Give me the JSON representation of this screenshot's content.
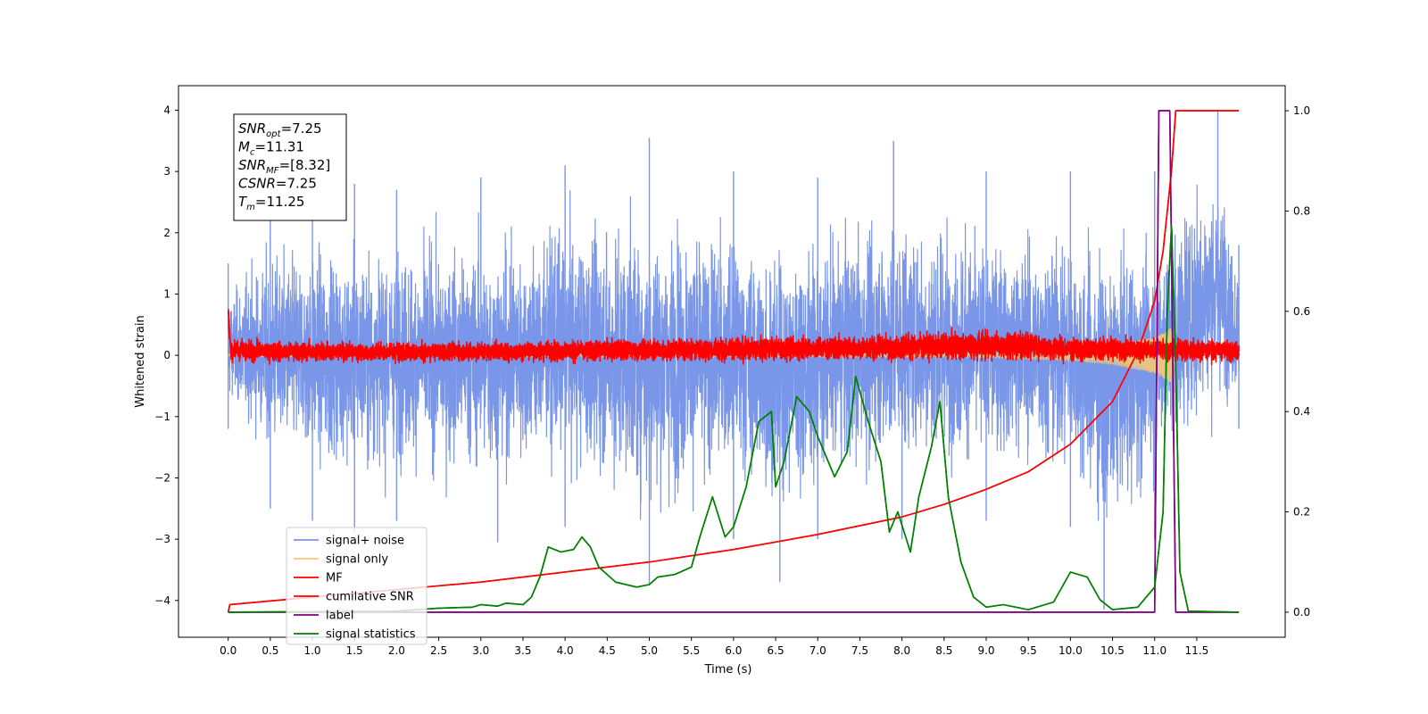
{
  "chart_data": {
    "type": "line",
    "xlabel": "Time (s)",
    "ylabel": "Whitened strain",
    "xlim": [
      -0.59,
      12.55
    ],
    "ylim": [
      -4.6,
      4.4
    ],
    "y2lim": [
      -0.05,
      1.05
    ],
    "xticks": [
      0.0,
      0.5,
      1.0,
      1.5,
      2.0,
      2.5,
      3.0,
      3.5,
      4.0,
      4.5,
      5.0,
      5.5,
      6.0,
      6.5,
      7.0,
      7.5,
      8.0,
      8.5,
      9.0,
      9.5,
      10.0,
      10.5,
      11.0,
      11.5
    ],
    "xtick_labels": [
      "0.0",
      "0.5",
      "1.0",
      "1.5",
      "2.0",
      "2.5",
      "3.0",
      "3.5",
      "4.0",
      "4.5",
      "5.0",
      "5.5",
      "6.0",
      "6.5",
      "7.0",
      "7.5",
      "8.0",
      "8.5",
      "9.0",
      "9.5",
      "10.0",
      "10.5",
      "11.0",
      "11.5"
    ],
    "yticks": [
      -4,
      -3,
      -2,
      -1,
      0,
      1,
      2,
      3,
      4
    ],
    "ytick_labels": [
      "−4",
      "−3",
      "−2",
      "−1",
      "0",
      "1",
      "2",
      "3",
      "4"
    ],
    "y2ticks": [
      0.0,
      0.2,
      0.4,
      0.6,
      0.8,
      1.0
    ],
    "y2tick_labels": [
      "0.0",
      "0.2",
      "0.4",
      "0.6",
      "0.8",
      "1.0"
    ],
    "grid": false,
    "legend_placement": "lower-left",
    "annotation_box": {
      "lines": [
        {
          "sym": "SNR",
          "sub": "opt",
          "val": "=7.25"
        },
        {
          "sym": "M",
          "sub": "c",
          "val": "=11.31"
        },
        {
          "sym": "SNR",
          "sub": "MF",
          "val": "=[8.32]"
        },
        {
          "sym": "CSNR",
          "sub": "",
          "val": "=7.25"
        },
        {
          "sym": "T",
          "sub": "m",
          "val": "=11.25"
        }
      ]
    },
    "series": [
      {
        "name": "signal+ noise",
        "axis": "left",
        "color": "#7a96e8",
        "style": "noise-band",
        "x_range": [
          0.0,
          12.0
        ],
        "upper_envelope": [
          [
            0.0,
            1.5
          ],
          [
            0.5,
            2.6
          ],
          [
            1.0,
            2.7
          ],
          [
            1.5,
            2.8
          ],
          [
            2.0,
            2.7
          ],
          [
            3.0,
            2.9
          ],
          [
            4.0,
            3.1
          ],
          [
            5.0,
            3.55
          ],
          [
            6.0,
            3.0
          ],
          [
            7.0,
            2.9
          ],
          [
            7.9,
            3.5
          ],
          [
            9.0,
            3.0
          ],
          [
            10.0,
            3.0
          ],
          [
            11.0,
            3.0
          ],
          [
            11.75,
            4.0
          ],
          [
            12.0,
            1.8
          ]
        ],
        "lower_envelope": [
          [
            0.0,
            -1.2
          ],
          [
            0.5,
            -2.5
          ],
          [
            1.0,
            -2.7
          ],
          [
            1.5,
            -2.9
          ],
          [
            2.0,
            -2.7
          ],
          [
            3.2,
            -3.05
          ],
          [
            4.0,
            -2.8
          ],
          [
            5.0,
            -3.75
          ],
          [
            6.0,
            -3.0
          ],
          [
            6.55,
            -3.7
          ],
          [
            7.0,
            -3.0
          ],
          [
            8.0,
            -3.0
          ],
          [
            9.0,
            -2.7
          ],
          [
            10.0,
            -2.8
          ],
          [
            10.4,
            -4.15
          ],
          [
            11.0,
            -3.0
          ],
          [
            12.0,
            -1.2
          ]
        ]
      },
      {
        "name": "signal only",
        "axis": "left",
        "color": "#f5c878",
        "style": "chirp",
        "x_range": [
          0.0,
          11.25
        ],
        "amplitude": [
          [
            0.0,
            0.02
          ],
          [
            9.0,
            0.03
          ],
          [
            10.0,
            0.08
          ],
          [
            10.5,
            0.15
          ],
          [
            11.0,
            0.3
          ],
          [
            11.2,
            0.45
          ],
          [
            11.25,
            0.0
          ]
        ]
      },
      {
        "name": "MF",
        "axis": "left",
        "color": "#ff0000",
        "style": "noise-band",
        "x_range": [
          0.0,
          12.0
        ],
        "upper_envelope": [
          [
            0.0,
            1.0
          ],
          [
            0.03,
            0.3
          ],
          [
            2.0,
            0.25
          ],
          [
            4.0,
            0.3
          ],
          [
            7.5,
            0.4
          ],
          [
            9.3,
            0.5
          ],
          [
            10.0,
            0.35
          ],
          [
            11.0,
            0.35
          ],
          [
            12.0,
            0.3
          ],
          [
            12.0,
            0.9
          ]
        ],
        "lower_envelope": [
          [
            0.0,
            0.5
          ],
          [
            0.03,
            -0.15
          ],
          [
            4.0,
            -0.15
          ],
          [
            8.0,
            -0.15
          ],
          [
            12.0,
            -0.15
          ]
        ]
      },
      {
        "name": "cumilative SNR",
        "axis": "right",
        "color": "#ff0000",
        "style": "line",
        "points": [
          [
            0.0,
            0.0
          ],
          [
            0.02,
            0.015
          ],
          [
            1.0,
            0.03
          ],
          [
            2.0,
            0.045
          ],
          [
            3.0,
            0.06
          ],
          [
            4.0,
            0.08
          ],
          [
            5.0,
            0.1
          ],
          [
            6.0,
            0.125
          ],
          [
            7.0,
            0.155
          ],
          [
            8.0,
            0.19
          ],
          [
            8.5,
            0.215
          ],
          [
            9.0,
            0.245
          ],
          [
            9.5,
            0.28
          ],
          [
            10.0,
            0.335
          ],
          [
            10.5,
            0.42
          ],
          [
            10.8,
            0.52
          ],
          [
            11.0,
            0.62
          ],
          [
            11.1,
            0.72
          ],
          [
            11.2,
            0.88
          ],
          [
            11.25,
            1.0
          ],
          [
            12.0,
            1.0
          ]
        ]
      },
      {
        "name": "label",
        "axis": "right",
        "color": "#800080",
        "style": "line",
        "points": [
          [
            0.0,
            0.0
          ],
          [
            11.0,
            0.0
          ],
          [
            11.05,
            1.0
          ],
          [
            11.18,
            1.0
          ],
          [
            11.25,
            0.0
          ],
          [
            12.0,
            0.0
          ]
        ]
      },
      {
        "name": "signal statistics",
        "axis": "right",
        "color": "#008000",
        "style": "line",
        "points": [
          [
            0.0,
            0.0
          ],
          [
            1.0,
            0.001
          ],
          [
            2.0,
            0.002
          ],
          [
            2.5,
            0.008
          ],
          [
            2.9,
            0.01
          ],
          [
            3.0,
            0.015
          ],
          [
            3.2,
            0.012
          ],
          [
            3.3,
            0.018
          ],
          [
            3.5,
            0.015
          ],
          [
            3.6,
            0.03
          ],
          [
            3.7,
            0.07
          ],
          [
            3.8,
            0.13
          ],
          [
            3.95,
            0.12
          ],
          [
            4.1,
            0.125
          ],
          [
            4.2,
            0.15
          ],
          [
            4.3,
            0.13
          ],
          [
            4.4,
            0.09
          ],
          [
            4.6,
            0.06
          ],
          [
            4.85,
            0.05
          ],
          [
            5.0,
            0.055
          ],
          [
            5.1,
            0.07
          ],
          [
            5.3,
            0.075
          ],
          [
            5.5,
            0.09
          ],
          [
            5.6,
            0.15
          ],
          [
            5.75,
            0.23
          ],
          [
            5.9,
            0.15
          ],
          [
            6.0,
            0.17
          ],
          [
            6.15,
            0.25
          ],
          [
            6.3,
            0.38
          ],
          [
            6.45,
            0.4
          ],
          [
            6.5,
            0.25
          ],
          [
            6.6,
            0.3
          ],
          [
            6.75,
            0.43
          ],
          [
            6.9,
            0.4
          ],
          [
            7.0,
            0.35
          ],
          [
            7.2,
            0.27
          ],
          [
            7.35,
            0.32
          ],
          [
            7.45,
            0.47
          ],
          [
            7.6,
            0.38
          ],
          [
            7.75,
            0.3
          ],
          [
            7.85,
            0.16
          ],
          [
            7.95,
            0.2
          ],
          [
            8.1,
            0.12
          ],
          [
            8.2,
            0.23
          ],
          [
            8.35,
            0.33
          ],
          [
            8.45,
            0.42
          ],
          [
            8.55,
            0.23
          ],
          [
            8.7,
            0.1
          ],
          [
            8.85,
            0.03
          ],
          [
            9.0,
            0.01
          ],
          [
            9.2,
            0.015
          ],
          [
            9.5,
            0.005
          ],
          [
            9.8,
            0.02
          ],
          [
            10.0,
            0.08
          ],
          [
            10.2,
            0.07
          ],
          [
            10.35,
            0.025
          ],
          [
            10.5,
            0.005
          ],
          [
            10.8,
            0.01
          ],
          [
            11.0,
            0.05
          ],
          [
            11.1,
            0.2
          ],
          [
            11.15,
            0.6
          ],
          [
            11.2,
            0.77
          ],
          [
            11.25,
            0.5
          ],
          [
            11.3,
            0.08
          ],
          [
            11.4,
            0.002
          ],
          [
            12.0,
            0.0
          ]
        ]
      }
    ]
  }
}
